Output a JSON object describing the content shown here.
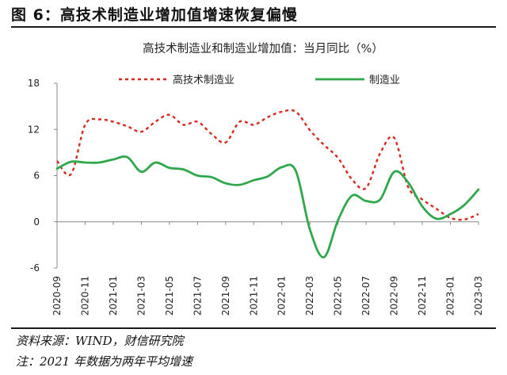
{
  "figure": {
    "title": "图 6：高技术制造业增加值增速恢复偏慢",
    "source": "资料来源：WIND，财信研究院",
    "note": "注：2021 年数据为两年平均增速"
  },
  "chart_data": {
    "type": "line",
    "title": "高技术制造业和制造业增加值：当月同比（%）",
    "xlabel": "",
    "ylabel": "",
    "ylim": [
      -6,
      18
    ],
    "yticks": [
      "18",
      "12",
      "6",
      "0",
      "-6"
    ],
    "x": [
      "2020-09",
      "2020-10",
      "2020-11",
      "2020-12",
      "2021-01",
      "2021-02",
      "2021-03",
      "2021-04",
      "2021-05",
      "2021-06",
      "2021-07",
      "2021-08",
      "2021-09",
      "2021-10",
      "2021-11",
      "2021-12",
      "2022-01",
      "2022-02",
      "2022-03",
      "2022-04",
      "2022-05",
      "2022-06",
      "2022-07",
      "2022-08",
      "2022-09",
      "2022-10",
      "2022-11",
      "2022-12",
      "2023-01",
      "2023-02",
      "2023-03"
    ],
    "xticks": [
      "2020-09",
      "2020-11",
      "2021-01",
      "2021-03",
      "2021-05",
      "2021-07",
      "2021-09",
      "2021-11",
      "2022-01",
      "2022-03",
      "2022-05",
      "2022-07",
      "2022-09",
      "2022-11",
      "2023-01",
      "2023-03"
    ],
    "legend_position": "top",
    "grid": false,
    "series": [
      {
        "name": "高技术制造业",
        "color": "#d62a1f",
        "style": "dashed",
        "values": [
          7.9,
          6.2,
          12.6,
          13.3,
          13.0,
          12.4,
          11.7,
          13.0,
          13.9,
          12.6,
          13.0,
          11.4,
          10.3,
          13.0,
          12.6,
          13.6,
          14.3,
          14.3,
          11.9,
          10.0,
          8.3,
          5.5,
          4.4,
          8.9,
          10.9,
          4.5,
          2.9,
          1.7,
          0.5,
          0.3,
          1.0
        ]
      },
      {
        "name": "制造业",
        "color": "#2ea84a",
        "style": "solid",
        "values": [
          6.9,
          7.8,
          7.7,
          7.7,
          8.1,
          8.4,
          6.5,
          7.7,
          7.0,
          6.8,
          6.0,
          5.8,
          5.0,
          4.8,
          5.4,
          5.9,
          7.1,
          6.6,
          -1.0,
          -4.6,
          0.2,
          3.4,
          2.7,
          2.9,
          6.5,
          5.1,
          2.0,
          0.4,
          1.0,
          2.2,
          4.2
        ]
      }
    ]
  }
}
